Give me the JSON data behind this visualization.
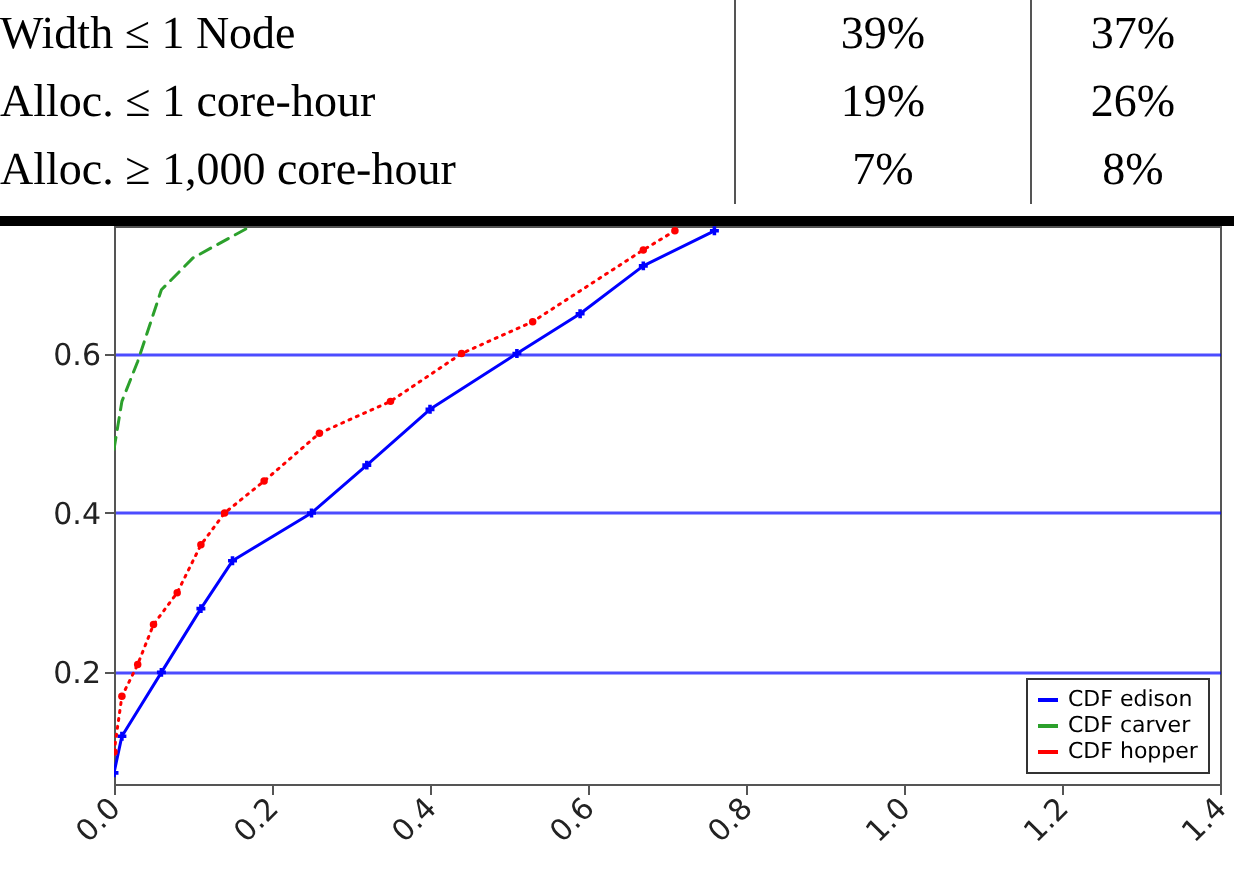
{
  "chart_data": {
    "type": "line",
    "annotations": [
      "Width ≤ 1 Node",
      "39%",
      "37%",
      "Alloc. ≤ 1 core-hour",
      "19%",
      "26%",
      "Alloc. ≥ 1,000 core-hour",
      "7%",
      "8%"
    ],
    "xlim": [
      0,
      1.4
    ],
    "xticks": [
      {
        "value": 0,
        "label": "0.0"
      },
      0.2,
      0.4,
      0.6,
      0.8,
      {
        "value": 1,
        "label": "1.0"
      },
      1.2,
      1.4
    ],
    "ylim": [
      0.06,
      0.76
    ],
    "yticks": [
      0.2,
      0.4,
      0.6
    ],
    "grid": "y",
    "legend": "bottom right",
    "series": [
      {
        "name": "CDF edison",
        "color": "#0000ff",
        "marker": "cross",
        "line_style": "solid",
        "x": [
          0,
          0.01,
          0.06,
          0.11,
          0.15,
          0.25,
          0.32,
          0.4,
          0.51,
          0.59,
          0.67,
          0.76
        ],
        "values": [
          0.074,
          0.12,
          0.2,
          0.28,
          0.34,
          0.4,
          0.46,
          0.53,
          0.6,
          0.65,
          0.71,
          0.754
        ]
      },
      {
        "name": "CDF carver",
        "color": "#2ca02c",
        "marker": "none",
        "line_style": "dashed",
        "x": [
          0,
          0.01,
          0.03,
          0.06,
          0.1,
          0.17
        ],
        "values": [
          0.48,
          0.54,
          0.59,
          0.68,
          0.72,
          0.758
        ]
      },
      {
        "name": "CDF hopper",
        "color": "#ff0000",
        "marker": "circle",
        "line_style": "dotted",
        "x": [
          0,
          0.01,
          0.03,
          0.05,
          0.08,
          0.11,
          0.14,
          0.19,
          0.26,
          0.35,
          0.44,
          0.53,
          0.67,
          0.71
        ],
        "values": [
          0.1,
          0.17,
          0.21,
          0.26,
          0.3,
          0.36,
          0.4,
          0.44,
          0.5,
          0.54,
          0.6,
          0.64,
          0.73,
          0.754
        ]
      }
    ]
  }
}
